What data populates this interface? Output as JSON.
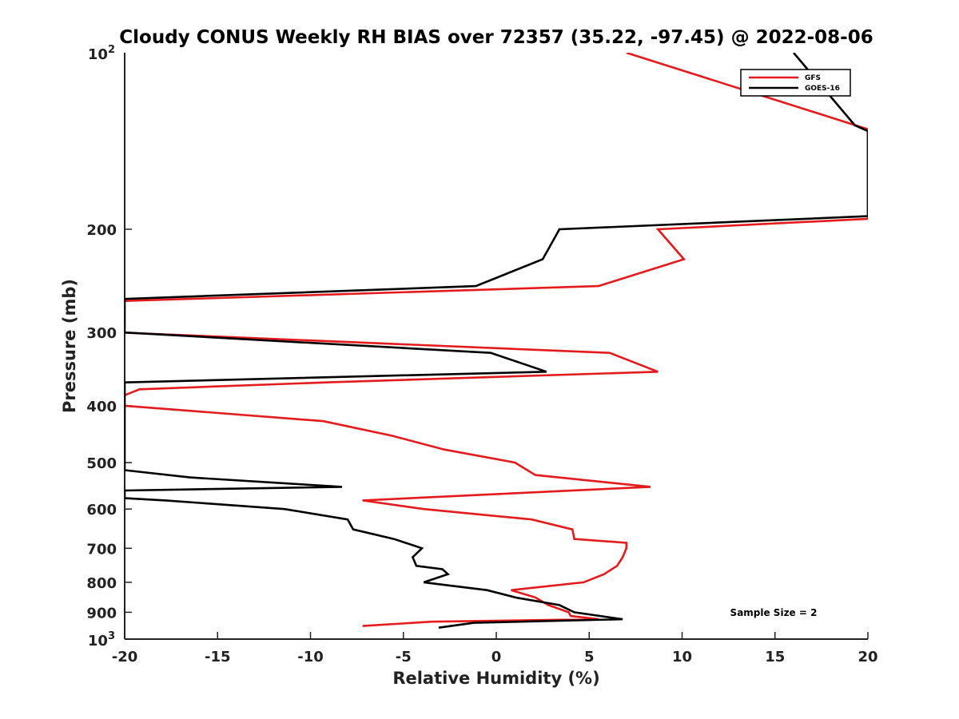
{
  "chart_data": {
    "type": "line",
    "title": "Cloudy CONUS Weekly RH BIAS over 72357 (35.22, -97.45) @ 2022-08-06",
    "xlabel": "Relative Humidity (%)",
    "ylabel": "Pressure (mb)",
    "xlim": [
      -20,
      20
    ],
    "ylim": [
      100,
      1000
    ],
    "y_scale": "log",
    "y_reversed": true,
    "grid": false,
    "legend_position": "top-right",
    "x_ticks": [
      -20,
      -15,
      -10,
      -5,
      0,
      5,
      10,
      15,
      20
    ],
    "x_tick_labels": [
      "-20",
      "-15",
      "-10",
      "-5",
      "0",
      "5",
      "10",
      "15",
      "20"
    ],
    "y_ticks": [
      200,
      300,
      400,
      500,
      600,
      700,
      800,
      900
    ],
    "y_tick_labels": [
      "200",
      "300",
      "400",
      "500",
      "600",
      "700",
      "800",
      "900"
    ],
    "y_top_label": {
      "base": "10",
      "exp": "2"
    },
    "y_bottom_label": {
      "base": "10",
      "exp": "3"
    },
    "series": [
      {
        "name": "GFS",
        "color": "#e41a1c",
        "points": [
          [
            -7.2,
            950
          ],
          [
            -3.5,
            934
          ],
          [
            5.5,
            925
          ],
          [
            4.0,
            913
          ],
          [
            3.9,
            900
          ],
          [
            2.8,
            875
          ],
          [
            2.1,
            849
          ],
          [
            0.8,
            825
          ],
          [
            4.7,
            800
          ],
          [
            5.8,
            775
          ],
          [
            6.5,
            750
          ],
          [
            6.8,
            725
          ],
          [
            7.0,
            700
          ],
          [
            7.0,
            685
          ],
          [
            4.2,
            675
          ],
          [
            4.1,
            650
          ],
          [
            1.9,
            625
          ],
          [
            -3.9,
            600
          ],
          [
            -7.2,
            580
          ],
          [
            8.3,
            550
          ],
          [
            2.1,
            525
          ],
          [
            1.0,
            500
          ],
          [
            -2.8,
            475
          ],
          [
            -5.6,
            450
          ],
          [
            -9.3,
            425
          ],
          [
            -20.0,
            400
          ],
          [
            -20.1,
            385
          ],
          [
            -19.2,
            375
          ],
          [
            -9.2,
            365
          ],
          [
            8.7,
            350
          ],
          [
            6.1,
            325
          ],
          [
            -20.3,
            300
          ],
          [
            -20.0,
            265
          ],
          [
            5.5,
            250
          ],
          [
            10.1,
            225
          ],
          [
            8.7,
            200
          ],
          [
            20.0,
            192
          ],
          [
            20.0,
            135
          ],
          [
            7.0,
            100
          ]
        ]
      },
      {
        "name": "GOES-16",
        "color": "#000000",
        "points": [
          [
            -3.1,
            956
          ],
          [
            -1.2,
            938
          ],
          [
            6.8,
            925
          ],
          [
            4.2,
            900
          ],
          [
            3.4,
            875
          ],
          [
            1.1,
            850
          ],
          [
            -0.5,
            825
          ],
          [
            -3.9,
            800
          ],
          [
            -2.6,
            775
          ],
          [
            -2.9,
            760
          ],
          [
            -4.3,
            750
          ],
          [
            -4.5,
            725
          ],
          [
            -4.0,
            700
          ],
          [
            -5.5,
            675
          ],
          [
            -7.7,
            650
          ],
          [
            -8.0,
            625
          ],
          [
            -11.4,
            600
          ],
          [
            -17.8,
            580
          ],
          [
            -20.0,
            575
          ],
          [
            -20.0,
            558
          ],
          [
            -8.3,
            550
          ],
          [
            -16.5,
            530
          ],
          [
            -20.0,
            515
          ],
          [
            -20.0,
            365
          ],
          [
            2.7,
            350
          ],
          [
            -0.3,
            325
          ],
          [
            -20.0,
            300
          ],
          [
            -20.0,
            263
          ],
          [
            -1.1,
            250
          ],
          [
            2.5,
            225
          ],
          [
            3.4,
            200
          ],
          [
            20.0,
            190
          ],
          [
            20.0,
            136
          ],
          [
            19.3,
            133
          ],
          [
            16.0,
            100
          ]
        ]
      }
    ],
    "annotation": "Sample Size = 2"
  }
}
